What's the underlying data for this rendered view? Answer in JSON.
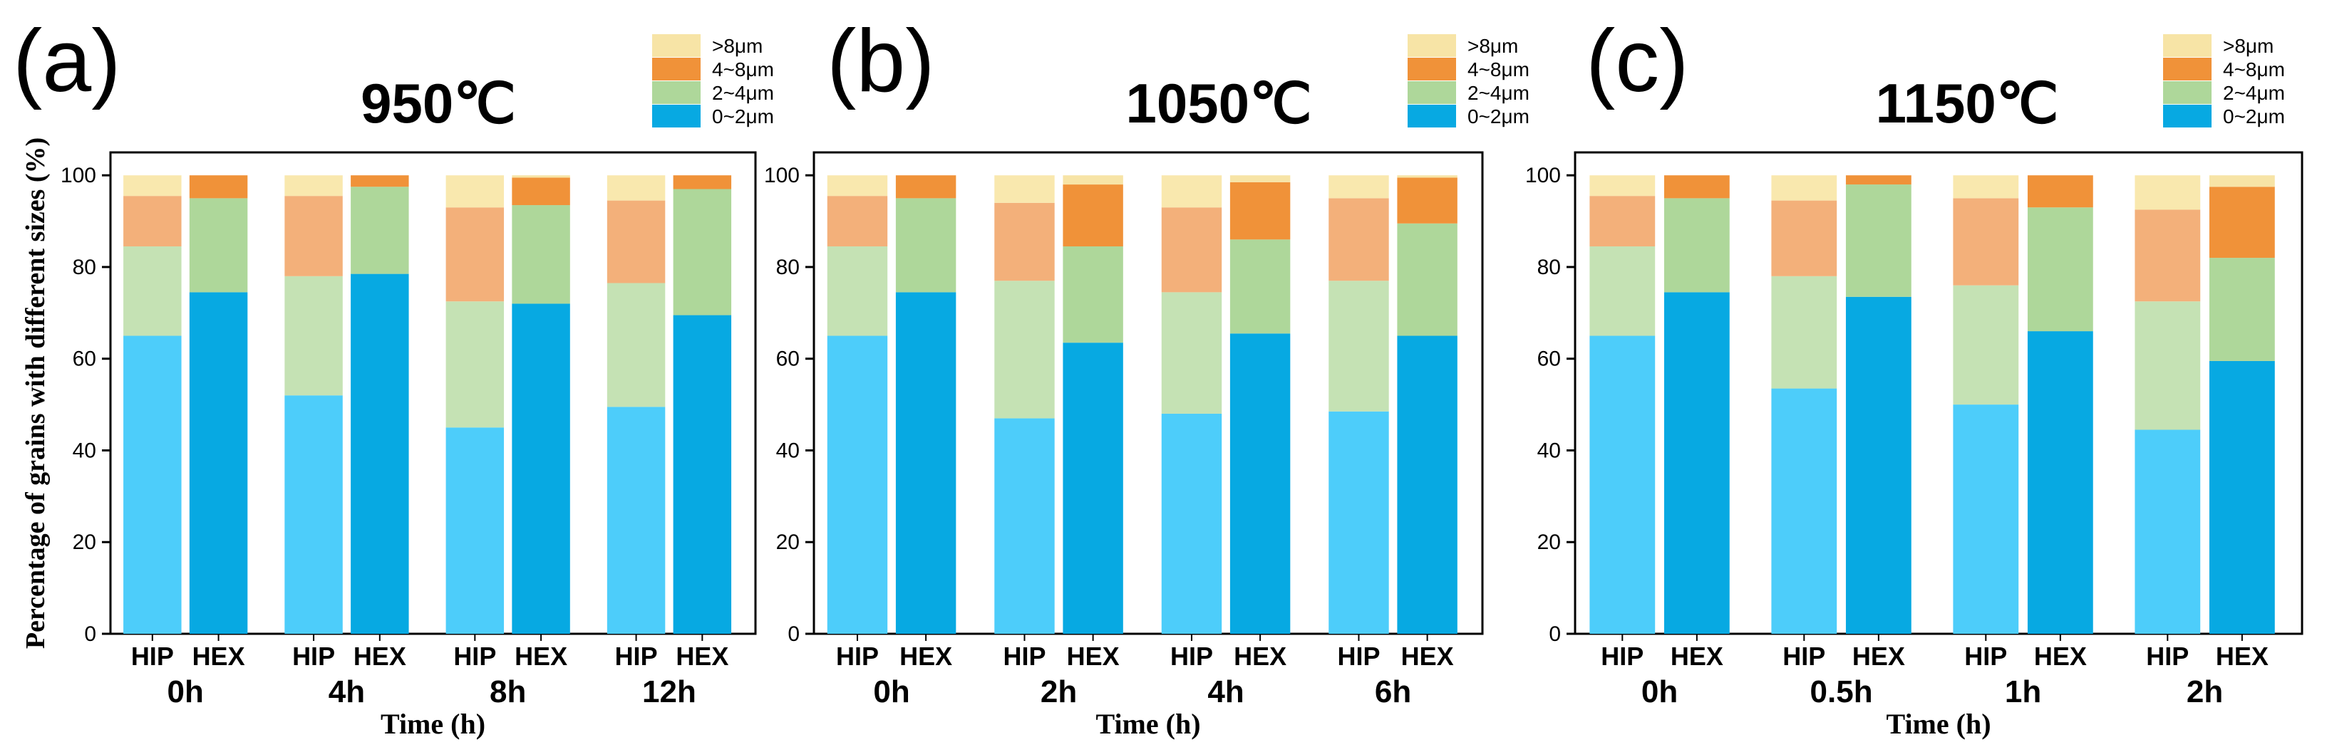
{
  "colors": {
    "hip": {
      "0~2μm": "#4dcdfa",
      "2~4μm": "#c5e2b4",
      "4~8μm": "#f3b07a",
      ">8μm": "#f9e8ae"
    },
    "hex": {
      "0~2μm": "#07a9e2",
      "2~4μm": "#aed79a",
      "4~8μm": "#f09239",
      ">8μm": "#f7e4a6"
    },
    "legend": {
      "0~2μm": "#07a9e2",
      "2~4μm": "#aed79a",
      "4~8μm": "#f09239",
      ">8μm": "#f7e4a6"
    }
  },
  "chart_data": [
    {
      "panel": "(a)",
      "type": "bar",
      "stacked": true,
      "title": "950℃",
      "ylabel": "Percentage of grains with different sizes (%)",
      "xlabel": "Time (h)",
      "ylim": [
        0,
        105
      ],
      "yticks": [
        "0",
        "20",
        "40",
        "60",
        "80",
        "100"
      ],
      "legend": [
        "0~2μm",
        "2~4μm",
        "4~8μm",
        ">8μm"
      ],
      "legend_order": [
        ">8μm",
        "4~8μm",
        "2~4μm",
        "0~2μm"
      ],
      "legend_position": "top-right",
      "groups": [
        {
          "label": "0h",
          "bars": [
            {
              "label": "HIP",
              "cumulative": [
                65,
                84.5,
                95.5,
                100
              ]
            },
            {
              "label": "HEX",
              "cumulative": [
                74.5,
                95,
                100,
                100
              ]
            }
          ]
        },
        {
          "label": "4h",
          "bars": [
            {
              "label": "HIP",
              "cumulative": [
                52,
                78,
                95.5,
                100
              ]
            },
            {
              "label": "HEX",
              "cumulative": [
                78.5,
                97.5,
                100,
                100
              ]
            }
          ]
        },
        {
          "label": "8h",
          "bars": [
            {
              "label": "HIP",
              "cumulative": [
                45,
                72.5,
                93,
                100
              ]
            },
            {
              "label": "HEX",
              "cumulative": [
                72,
                93.5,
                99.5,
                100
              ]
            }
          ]
        },
        {
          "label": "12h",
          "bars": [
            {
              "label": "HIP",
              "cumulative": [
                49.5,
                76.5,
                94.5,
                100
              ]
            },
            {
              "label": "HEX",
              "cumulative": [
                69.5,
                97,
                100,
                100
              ]
            }
          ]
        }
      ]
    },
    {
      "panel": "(b)",
      "type": "bar",
      "stacked": true,
      "title": "1050℃",
      "ylabel": "",
      "xlabel": "Time (h)",
      "ylim": [
        0,
        105
      ],
      "yticks": [
        "0",
        "20",
        "40",
        "60",
        "80",
        "100"
      ],
      "legend": [
        "0~2μm",
        "2~4μm",
        "4~8μm",
        ">8μm"
      ],
      "legend_order": [
        ">8μm",
        "4~8μm",
        "2~4μm",
        "0~2μm"
      ],
      "legend_position": "top-right",
      "groups": [
        {
          "label": "0h",
          "bars": [
            {
              "label": "HIP",
              "cumulative": [
                65,
                84.5,
                95.5,
                100
              ]
            },
            {
              "label": "HEX",
              "cumulative": [
                74.5,
                95,
                100,
                100
              ]
            }
          ]
        },
        {
          "label": "2h",
          "bars": [
            {
              "label": "HIP",
              "cumulative": [
                47,
                77,
                94,
                100
              ]
            },
            {
              "label": "HEX",
              "cumulative": [
                63.5,
                84.5,
                98,
                100
              ]
            }
          ]
        },
        {
          "label": "4h",
          "bars": [
            {
              "label": "HIP",
              "cumulative": [
                48,
                74.5,
                93,
                100
              ]
            },
            {
              "label": "HEX",
              "cumulative": [
                65.5,
                86,
                98.5,
                100
              ]
            }
          ]
        },
        {
          "label": "6h",
          "bars": [
            {
              "label": "HIP",
              "cumulative": [
                48.5,
                77,
                95,
                100
              ]
            },
            {
              "label": "HEX",
              "cumulative": [
                65,
                89.5,
                99.5,
                100
              ]
            }
          ]
        }
      ]
    },
    {
      "panel": "(c)",
      "type": "bar",
      "stacked": true,
      "title": "1150℃",
      "ylabel": "",
      "xlabel": "Time (h)",
      "ylim": [
        0,
        105
      ],
      "yticks": [
        "0",
        "20",
        "40",
        "60",
        "80",
        "100"
      ],
      "legend": [
        "0~2μm",
        "2~4μm",
        "4~8μm",
        ">8μm"
      ],
      "legend_order": [
        ">8μm",
        "4~8μm",
        "2~4μm",
        "0~2μm"
      ],
      "legend_position": "top-right",
      "groups": [
        {
          "label": "0h",
          "bars": [
            {
              "label": "HIP",
              "cumulative": [
                65,
                84.5,
                95.5,
                100
              ]
            },
            {
              "label": "HEX",
              "cumulative": [
                74.5,
                95,
                100,
                100
              ]
            }
          ]
        },
        {
          "label": "0.5h",
          "bars": [
            {
              "label": "HIP",
              "cumulative": [
                53.5,
                78,
                94.5,
                100
              ]
            },
            {
              "label": "HEX",
              "cumulative": [
                73.5,
                98,
                100,
                100
              ]
            }
          ]
        },
        {
          "label": "1h",
          "bars": [
            {
              "label": "HIP",
              "cumulative": [
                50,
                76,
                95,
                100
              ]
            },
            {
              "label": "HEX",
              "cumulative": [
                66,
                93,
                100,
                100
              ]
            }
          ]
        },
        {
          "label": "2h",
          "bars": [
            {
              "label": "HIP",
              "cumulative": [
                44.5,
                72.5,
                92.5,
                100
              ]
            },
            {
              "label": "HEX",
              "cumulative": [
                59.5,
                82,
                97.5,
                100
              ]
            }
          ]
        }
      ]
    }
  ]
}
